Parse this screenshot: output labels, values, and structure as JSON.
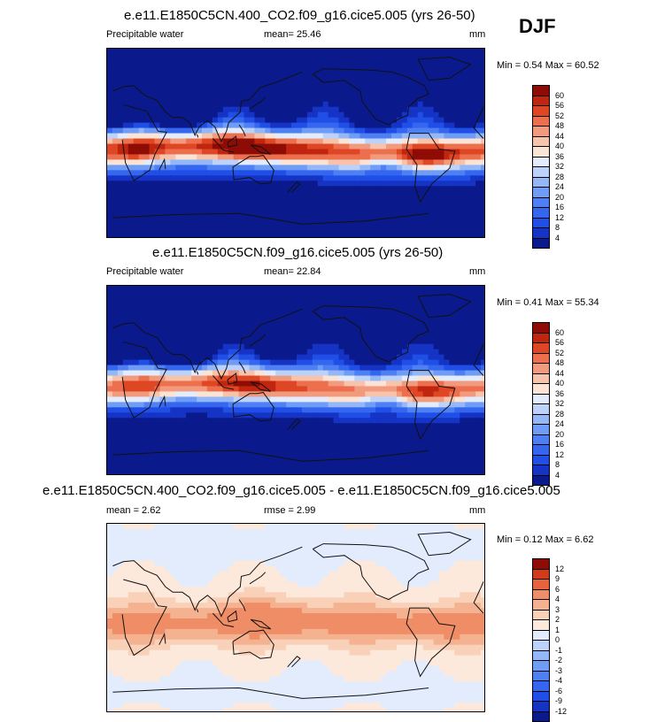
{
  "season": "DJF",
  "panels": [
    {
      "title": "e.e11.E1850C5CN.400_CO2.f09_g16.cice5.005 (yrs 26-50)",
      "variable": "Precipitable water",
      "stat1": "mean=  25.46",
      "stat2": "",
      "units": "mm",
      "minmax": "Min =  0.54 Max = 60.52",
      "palette": "absolute",
      "field": "co2",
      "levels": [
        "60",
        "56",
        "52",
        "48",
        "44",
        "40",
        "36",
        "32",
        "28",
        "24",
        "20",
        "16",
        "12",
        "8",
        "4"
      ]
    },
    {
      "title": "e.e11.E1850C5CN.f09_g16.cice5.005 (yrs 26-50)",
      "variable": "Precipitable water",
      "stat1": "mean=  22.84",
      "stat2": "",
      "units": "mm",
      "minmax": "Min =  0.41 Max = 55.34",
      "palette": "absolute",
      "field": "ctrl",
      "levels": [
        "60",
        "56",
        "52",
        "48",
        "44",
        "40",
        "36",
        "32",
        "28",
        "24",
        "20",
        "16",
        "12",
        "8",
        "4"
      ]
    },
    {
      "title": "e.e11.E1850C5CN.400_CO2.f09_g16.cice5.005 - e.e11.E1850C5CN.f09_g16.cice5.005",
      "variable": "",
      "stat1": "mean =   2.62",
      "stat2": "rmse =   2.99",
      "units": "mm",
      "minmax": "Min =  0.12 Max =  6.62",
      "palette": "difference",
      "field": "diff",
      "levels": [
        "12",
        "9",
        "6",
        "4",
        "3",
        "2",
        "1",
        "0",
        "-1",
        "-2",
        "-3",
        "-4",
        "-6",
        "-9",
        "-12"
      ]
    }
  ],
  "colors": {
    "absolute": [
      "#0a1a8c",
      "#1533c4",
      "#1f4fe6",
      "#3566f0",
      "#4e80f3",
      "#6f9cf5",
      "#93b7f7",
      "#bcd2fa",
      "#e2ecfc",
      "#fbe4d6",
      "#f7c3aa",
      "#f29a7d",
      "#ec6f4e",
      "#de4624",
      "#c0260f",
      "#8e0c05"
    ],
    "difference": [
      "#0a1a8c",
      "#1533c4",
      "#1f4fe6",
      "#3566f0",
      "#4e80f3",
      "#6f9cf5",
      "#93b7f7",
      "#bcd2fa",
      "#e2ecfc",
      "#fde9dc",
      "#f9d0b8",
      "#f5b291",
      "#ef8d66",
      "#e6633e",
      "#cf3c1c",
      "#8e0c05"
    ],
    "coastline": "#111111"
  }
}
